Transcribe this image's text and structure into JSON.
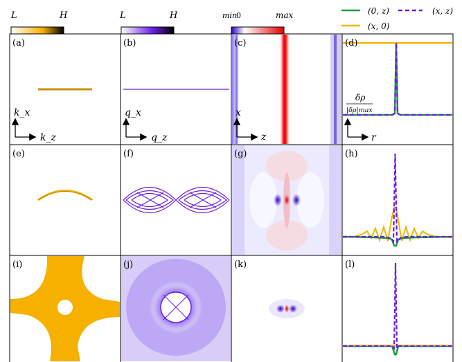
{
  "colorbars": [
    {
      "low": "L",
      "high": "H",
      "colors": [
        "#ffffff",
        "#f5b000",
        "#000000"
      ]
    },
    {
      "low": "L",
      "high": "H",
      "colors": [
        "#ffffff",
        "#6a1ee6",
        "#000000"
      ]
    },
    {
      "low": "min",
      "zero": "0",
      "high": "max",
      "colors": [
        "#2a00c8",
        "#ffffff",
        "#e60000"
      ]
    }
  ],
  "legend": {
    "entries": [
      {
        "label": "(0, z)",
        "color": "#1a9e3a",
        "style": "solid"
      },
      {
        "label": "(x, z)",
        "color": "#6a1ee6",
        "style": "dashed"
      },
      {
        "label": "(x, 0)",
        "color": "#f5b400",
        "style": "solid"
      }
    ]
  },
  "panels": [
    {
      "letter": "(a)",
      "content": "fermi-line"
    },
    {
      "letter": "(b)",
      "content": "nesting-line"
    },
    {
      "letter": "(c)",
      "content": "stripes"
    },
    {
      "letter": "(d)",
      "content": "profile-1"
    },
    {
      "letter": "(e)",
      "content": "fermi-arc"
    },
    {
      "letter": "(f)",
      "content": "nesting-lens"
    },
    {
      "letter": "(g)",
      "content": "density-2"
    },
    {
      "letter": "(h)",
      "content": "profile-2"
    },
    {
      "letter": "(i)",
      "content": "fermi-star"
    },
    {
      "letter": "(j)",
      "content": "nesting-blob"
    },
    {
      "letter": "(k)",
      "content": "density-3"
    },
    {
      "letter": "(l)",
      "content": "profile-3"
    }
  ],
  "axis_labels": {
    "a": {
      "y": "k_x",
      "x": "k_z"
    },
    "b": {
      "y": "q_x",
      "x": "q_z"
    },
    "c": {
      "y": "x",
      "x": "z"
    },
    "d": {
      "y_num": "δρ",
      "y_den": "|δρ|max",
      "x": "r"
    }
  },
  "colors": {
    "orange": "#f5b000",
    "purple": "#6a1ee6",
    "red": "#e60000",
    "blue": "#2a00c8",
    "green": "#1a9e3a"
  }
}
